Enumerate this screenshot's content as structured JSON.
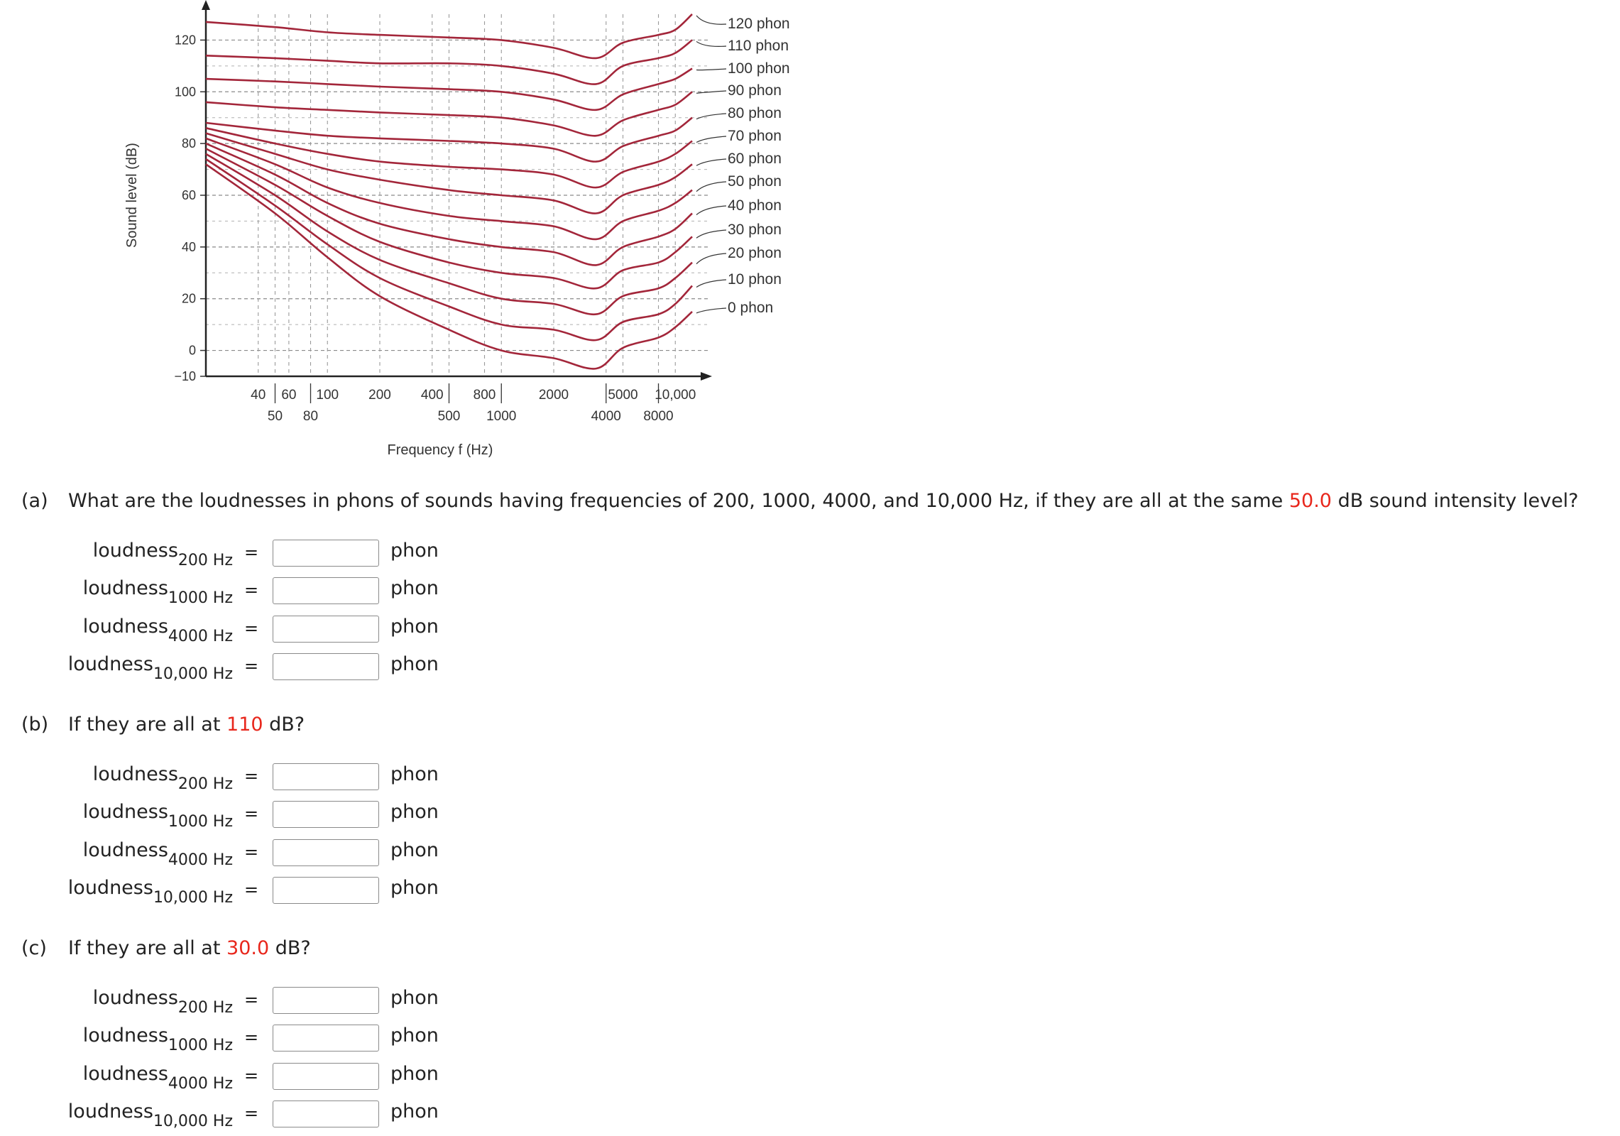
{
  "figure": {
    "ylabel": "Sound level (dB)",
    "xlabel": "Frequency f (Hz)",
    "y_ticks": [
      "120",
      "100",
      "80",
      "60",
      "40",
      "20",
      "0",
      "−10"
    ],
    "x_ticks_top": [
      "40",
      "60",
      "100",
      "200",
      "400",
      "800",
      "2000",
      "5000",
      "10,000"
    ],
    "x_ticks_bottom": [
      "50",
      "80",
      "500",
      "1000",
      "4000",
      "8000"
    ],
    "curve_labels": [
      "120 phon",
      "110 phon",
      "100 phon",
      "90 phon",
      "80 phon",
      "70 phon",
      "60 phon",
      "50 phon",
      "40 phon",
      "30 phon",
      "20 phon",
      "10 phon",
      "0 phon"
    ],
    "curve_color": "#a3263a"
  },
  "chart_data": {
    "type": "line",
    "title": "",
    "xlabel": "Frequency f (Hz)",
    "ylabel": "Sound level (dB)",
    "x_scale": "log",
    "ylim": [
      -10,
      130
    ],
    "x": [
      20,
      50,
      100,
      200,
      500,
      1000,
      2000,
      3500,
      5000,
      8000,
      10000,
      12500
    ],
    "series": [
      {
        "name": "120 phon",
        "values": [
          127,
          125,
          123,
          122,
          121,
          120,
          117,
          113,
          119,
          122,
          124,
          130
        ]
      },
      {
        "name": "110 phon",
        "values": [
          114,
          113,
          112,
          111,
          111,
          110,
          107,
          103,
          110,
          113,
          115,
          120
        ]
      },
      {
        "name": "100 phon",
        "values": [
          105,
          104,
          103,
          102,
          101,
          100,
          97,
          93,
          99,
          103,
          105,
          109
        ]
      },
      {
        "name": "90 phon",
        "values": [
          96,
          94,
          93,
          92,
          91,
          90,
          87,
          83,
          89,
          93,
          95,
          100
        ]
      },
      {
        "name": "80 phon",
        "values": [
          88,
          85,
          83,
          82,
          81,
          80,
          78,
          73,
          79,
          83,
          85,
          90
        ]
      },
      {
        "name": "70 phon",
        "values": [
          86,
          80,
          76,
          73,
          71,
          70,
          68,
          63,
          69,
          73,
          76,
          81
        ]
      },
      {
        "name": "60 phon",
        "values": [
          84,
          76,
          70,
          66,
          62,
          60,
          58,
          53,
          60,
          64,
          67,
          72
        ]
      },
      {
        "name": "50 phon",
        "values": [
          82,
          72,
          63,
          57,
          52,
          50,
          48,
          43,
          50,
          54,
          57,
          62
        ]
      },
      {
        "name": "40 phon",
        "values": [
          80,
          68,
          57,
          49,
          43,
          40,
          38,
          33,
          40,
          44,
          47,
          53
        ]
      },
      {
        "name": "30 phon",
        "values": [
          78,
          64,
          52,
          42,
          34,
          30,
          28,
          24,
          31,
          34,
          38,
          44
        ]
      },
      {
        "name": "20 phon",
        "values": [
          76,
          60,
          46,
          35,
          26,
          20,
          18,
          14,
          21,
          24,
          28,
          34
        ]
      },
      {
        "name": "10 phon",
        "values": [
          74,
          56,
          41,
          28,
          17,
          10,
          8,
          4,
          11,
          14,
          18,
          25
        ]
      },
      {
        "name": "0 phon",
        "values": [
          72,
          53,
          36,
          21,
          8,
          0,
          -3,
          -7,
          1,
          5,
          9,
          15
        ]
      }
    ]
  },
  "parts": [
    {
      "letter": "(a)",
      "text_before": "What are the loudnesses in phons of sounds having frequencies of 200, 1000, 4000, and 10,000 Hz, if they are all at the same ",
      "highlight": "50.0",
      "text_after": " dB sound intensity level?",
      "rows": [
        {
          "label": "loudness",
          "sub": "200 Hz",
          "eq": "=",
          "value": "",
          "unit": "phon"
        },
        {
          "label": "loudness",
          "sub": "1000 Hz",
          "eq": "=",
          "value": "",
          "unit": "phon"
        },
        {
          "label": "loudness",
          "sub": "4000 Hz",
          "eq": "=",
          "value": "",
          "unit": "phon"
        },
        {
          "label": "loudness",
          "sub": "10,000 Hz",
          "eq": "=",
          "value": "",
          "unit": "phon"
        }
      ]
    },
    {
      "letter": "(b)",
      "text_before": "If they are all at ",
      "highlight": "110",
      "text_after": " dB?",
      "rows": [
        {
          "label": "loudness",
          "sub": "200 Hz",
          "eq": "=",
          "value": "",
          "unit": "phon"
        },
        {
          "label": "loudness",
          "sub": "1000 Hz",
          "eq": "=",
          "value": "",
          "unit": "phon"
        },
        {
          "label": "loudness",
          "sub": "4000 Hz",
          "eq": "=",
          "value": "",
          "unit": "phon"
        },
        {
          "label": "loudness",
          "sub": "10,000 Hz",
          "eq": "=",
          "value": "",
          "unit": "phon"
        }
      ]
    },
    {
      "letter": "(c)",
      "text_before": "If they are all at ",
      "highlight": "30.0",
      "text_after": " dB?",
      "rows": [
        {
          "label": "loudness",
          "sub": "200 Hz",
          "eq": "=",
          "value": "",
          "unit": "phon"
        },
        {
          "label": "loudness",
          "sub": "1000 Hz",
          "eq": "=",
          "value": "",
          "unit": "phon"
        },
        {
          "label": "loudness",
          "sub": "4000 Hz",
          "eq": "=",
          "value": "",
          "unit": "phon"
        },
        {
          "label": "loudness",
          "sub": "10,000 Hz",
          "eq": "=",
          "value": "",
          "unit": "phon"
        }
      ]
    }
  ]
}
